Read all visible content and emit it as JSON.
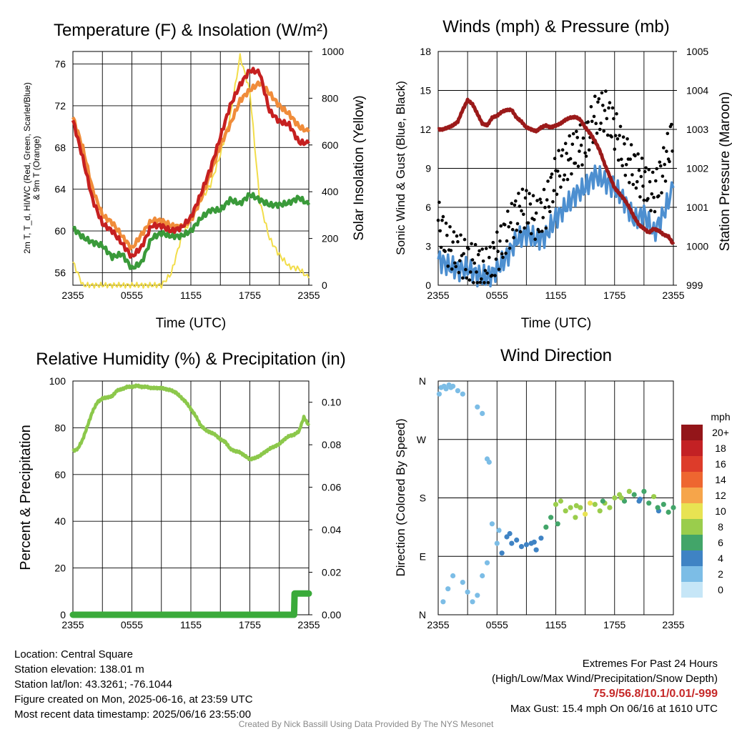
{
  "chart_data": [
    {
      "type": "line",
      "title": "Temperature (F) & Insolation (W/m²)",
      "xlabel": "Time (UTC)",
      "ylabel_lines": [
        "2m T, T_d, HI/WC (Red, Green, Scarlet/Blue)",
        "& 9m T (Orange)"
      ],
      "y2label": "Solar Insolation (Yellow)",
      "x_ticks": [
        "2355",
        "0555",
        "1155",
        "1755",
        "2355"
      ],
      "ylim": [
        54.8,
        77.2
      ],
      "y_ticks": [
        56,
        60,
        64,
        68,
        72,
        76
      ],
      "y2lim": [
        0,
        1000
      ],
      "y2_ticks": [
        0,
        200,
        400,
        600,
        800,
        1000
      ],
      "series": [
        {
          "name": "9m T",
          "color": "#f08c3a",
          "axis": "left",
          "x": [
            0,
            1,
            2,
            3,
            4,
            5,
            6,
            7,
            8,
            9,
            10,
            11,
            12,
            13,
            14,
            15,
            16,
            17,
            18,
            19,
            20,
            21,
            22,
            23,
            24
          ],
          "values": [
            70.9,
            68,
            64,
            61.5,
            60.8,
            59.5,
            58.3,
            59.7,
            61,
            61,
            60.5,
            60.4,
            61,
            63,
            65.5,
            68.2,
            70.2,
            72.5,
            73.5,
            74.2,
            73.2,
            72,
            71.2,
            70,
            69.5
          ]
        },
        {
          "name": "Scarlet",
          "color": "#c62020",
          "axis": "left",
          "x": [
            0,
            1,
            2,
            3,
            4,
            5,
            6,
            7,
            8,
            9,
            10,
            11,
            12,
            13,
            14,
            15,
            16,
            17,
            18,
            19,
            20,
            21,
            22,
            23,
            24
          ],
          "values": [
            70.6,
            67,
            63,
            60.7,
            60,
            58.8,
            57.5,
            58.5,
            60.5,
            60.5,
            60,
            60.3,
            61.3,
            63.5,
            66,
            69,
            72,
            74,
            75.4,
            75.2,
            71.5,
            70.5,
            70.2,
            68.5,
            68.4
          ]
        },
        {
          "name": "T_d",
          "color": "#3a9a3a",
          "axis": "left",
          "x": [
            0,
            1,
            2,
            3,
            4,
            5,
            6,
            7,
            8,
            9,
            10,
            11,
            12,
            13,
            14,
            15,
            16,
            17,
            18,
            19,
            20,
            21,
            22,
            23,
            24
          ],
          "values": [
            60.3,
            59.4,
            58.9,
            58.6,
            57.5,
            57.8,
            56.4,
            57,
            59.3,
            59.8,
            59.5,
            59.5,
            60,
            61.2,
            62,
            62,
            63,
            62.6,
            63.5,
            63,
            62.5,
            62.5,
            62.7,
            63.2,
            62.5
          ]
        },
        {
          "name": "Insolation",
          "color": "#f2dd4a",
          "axis": "right",
          "x": [
            0,
            1,
            2,
            3,
            4,
            5,
            6,
            7,
            8,
            9,
            10,
            11,
            12,
            13,
            14,
            15,
            16,
            17,
            18,
            19,
            20,
            21,
            22,
            23,
            24
          ],
          "values": [
            100,
            0,
            0,
            0,
            0,
            0,
            0,
            0,
            0,
            0,
            50,
            200,
            280,
            360,
            430,
            560,
            720,
            980,
            830,
            360,
            200,
            130,
            80,
            70,
            30
          ]
        }
      ]
    },
    {
      "type": "line",
      "title": "Winds (mph) & Pressure (mb)",
      "xlabel": "Time (UTC)",
      "ylabel": "Sonic Wind & Gust (Blue, Black)",
      "y2label": "Station Pressure (Maroon)",
      "x_ticks": [
        "2355",
        "0555",
        "1155",
        "1755",
        "2355"
      ],
      "ylim": [
        0,
        18
      ],
      "y_ticks": [
        0,
        3,
        6,
        9,
        12,
        15,
        18
      ],
      "y2lim": [
        999,
        1005
      ],
      "y2_ticks": [
        999,
        1000,
        1001,
        1002,
        1003,
        1004,
        1005
      ],
      "series": [
        {
          "name": "Sonic Wind",
          "color": "#4d8fd0",
          "axis": "left",
          "x": [
            0,
            1,
            2,
            3,
            4,
            5,
            6,
            7,
            8,
            9,
            10,
            11,
            12,
            13,
            14,
            15,
            16,
            17,
            18,
            19,
            20,
            21,
            22,
            23,
            24
          ],
          "values": [
            2,
            1.5,
            1.2,
            1.3,
            0.8,
            0.6,
            1.2,
            2.2,
            3.5,
            4,
            3.5,
            3.8,
            5.2,
            6,
            7,
            7.5,
            8.5,
            8,
            7.5,
            6.5,
            5,
            5.5,
            4,
            5.5,
            7.5
          ]
        },
        {
          "name": "Gust",
          "color": "#000000",
          "axis": "left",
          "x": [
            0,
            1,
            2,
            3,
            4,
            5,
            6,
            7,
            8,
            9,
            10,
            11,
            12,
            13,
            14,
            15,
            16,
            17,
            18,
            19,
            20,
            21,
            22,
            23,
            24
          ],
          "values": [
            5,
            3,
            2.5,
            1.8,
            1.5,
            1.2,
            2.5,
            4,
            5.5,
            6,
            5,
            6,
            8.5,
            9.5,
            10.5,
            11,
            13,
            13.5,
            12,
            10,
            9,
            8,
            7,
            9,
            12
          ]
        },
        {
          "name": "Station Pressure",
          "color": "#9b1a1a",
          "axis": "right",
          "x": [
            0,
            0.5,
            1,
            1.5,
            2,
            2.5,
            3,
            3.5,
            4,
            4.5,
            5,
            5.5,
            6,
            6.5,
            7,
            7.5,
            8,
            8.5,
            9,
            9.5,
            10,
            10.5,
            11,
            11.5,
            12,
            12.5,
            13,
            13.5,
            14,
            14.5,
            15,
            15.5,
            16,
            16.5,
            17,
            17.5,
            18,
            18.5,
            19,
            19.5,
            20,
            20.5,
            21,
            21.5,
            22,
            22.5,
            23,
            23.5,
            24
          ],
          "values": [
            1003,
            1003,
            1003.05,
            1003.1,
            1003.2,
            1003.5,
            1003.75,
            1003.65,
            1003.4,
            1003.15,
            1003.1,
            1003.3,
            1003.35,
            1003.45,
            1003.5,
            1003.5,
            1003.3,
            1003.2,
            1003.05,
            1003,
            1002.95,
            1003.05,
            1003.1,
            1003.05,
            1003.1,
            1003.15,
            1003.25,
            1003.3,
            1003.32,
            1003.25,
            1003.05,
            1002.9,
            1002.7,
            1002.45,
            1002.1,
            1001.8,
            1001.5,
            1001.35,
            1001.2,
            1001,
            1000.75,
            1000.55,
            1000.45,
            1000.35,
            1000.45,
            1000.4,
            1000.3,
            1000.25,
            1000.05
          ]
        }
      ]
    },
    {
      "type": "line",
      "title": "Relative Humidity (%) & Precipitation (in)",
      "xlabel": "",
      "ylabel": "Percent & Precipitation",
      "x_ticks": [
        "2355",
        "0555",
        "1155",
        "1755",
        "2355"
      ],
      "ylim": [
        0,
        100
      ],
      "y_ticks": [
        0,
        20,
        40,
        60,
        80,
        100
      ],
      "y2lim": [
        0,
        0.11
      ],
      "y2_ticks": [
        "0.00",
        "0.02",
        "0.04",
        "0.06",
        "0.08",
        "0.10"
      ],
      "series": [
        {
          "name": "Relative Humidity",
          "color": "#8cc84b",
          "axis": "left",
          "x": [
            0,
            0.5,
            1,
            1.5,
            2,
            2.5,
            3,
            3.5,
            4,
            4.5,
            5,
            5.5,
            6,
            6.5,
            7,
            7.5,
            8,
            8.5,
            9,
            9.5,
            10,
            10.5,
            11,
            11.5,
            12,
            12.5,
            13,
            13.5,
            14,
            14.5,
            15,
            15.5,
            16,
            16.5,
            17,
            17.5,
            18,
            18.5,
            19,
            19.5,
            20,
            20.5,
            21,
            21.5,
            22,
            22.5,
            23,
            23.5,
            24
          ],
          "values": [
            70,
            71,
            75,
            81,
            87,
            91,
            92.5,
            93,
            93.5,
            96,
            96.5,
            97.5,
            97.5,
            98,
            97.5,
            97.5,
            97,
            97,
            97,
            96.5,
            96,
            95,
            93,
            91,
            88,
            85,
            81,
            79,
            78,
            77,
            75,
            74,
            71,
            70,
            69.5,
            68,
            66.5,
            67,
            68,
            69.5,
            71,
            72,
            73,
            75,
            76.5,
            77,
            78.5,
            84.5,
            81
          ]
        },
        {
          "name": "Precipitation",
          "color": "#3aaa3a",
          "axis": "right",
          "x": [
            0,
            1,
            2,
            3,
            4,
            5,
            6,
            7,
            8,
            9,
            10,
            11,
            12,
            13,
            14,
            15,
            16,
            17,
            18,
            19,
            20,
            21,
            22,
            22.5,
            22.55,
            23,
            23.5,
            24
          ],
          "values": [
            0,
            0,
            0,
            0,
            0,
            0,
            0,
            0,
            0,
            0,
            0,
            0,
            0,
            0,
            0,
            0,
            0,
            0,
            0,
            0,
            0,
            0,
            0,
            0,
            0.01,
            0.01,
            0.01,
            0.01
          ]
        }
      ]
    },
    {
      "type": "scatter",
      "title": "Wind Direction",
      "xlabel": "",
      "ylabel": "Direction (Colored By Speed)",
      "x_ticks": [
        "2355",
        "0555",
        "1155",
        "1755",
        "2355"
      ],
      "y_ticks": [
        "N",
        "E",
        "S",
        "W",
        "N"
      ],
      "ylim": [
        0,
        360
      ],
      "colorbar": {
        "unit": "mph",
        "labels": [
          "0",
          "2",
          "4",
          "6",
          "8",
          "10",
          "12",
          "14",
          "16",
          "18",
          "20+"
        ],
        "colors": [
          "#c6e6f7",
          "#7cbde6",
          "#3f83c4",
          "#42a569",
          "#9acd4c",
          "#e8e352",
          "#f6a54a",
          "#ee6630",
          "#dd3c2a",
          "#c32124",
          "#931519"
        ]
      },
      "points": {
        "x": [
          0.1,
          0.3,
          0.6,
          0.8,
          1.1,
          1.3,
          1.5,
          2,
          2.5,
          4,
          4.5,
          5,
          5.2,
          0.5,
          1,
          1.5,
          2.5,
          3,
          3.5,
          4,
          4.5,
          5,
          5.5,
          6,
          6.5,
          7,
          7.5,
          8,
          8.5,
          9,
          9.5,
          10,
          10.5,
          11,
          11.5,
          12,
          12.5,
          13,
          13.5,
          14,
          14.5,
          15,
          15.5,
          16,
          16.5,
          17,
          17.5,
          18,
          18.5,
          19,
          19.5,
          20,
          20.5,
          21,
          21.5,
          22,
          22.5,
          23,
          23.5,
          24,
          6.2,
          7.3,
          9.8,
          12.2,
          14.1,
          16.8,
          18.7,
          20.6,
          22.4
        ],
        "y": [
          340,
          350,
          352,
          348,
          354,
          350,
          352,
          345,
          340,
          320,
          310,
          240,
          235,
          20,
          40,
          60,
          50,
          35,
          20,
          30,
          60,
          80,
          140,
          110,
          95,
          120,
          110,
          115,
          105,
          108,
          110,
          100,
          118,
          135,
          150,
          170,
          175,
          160,
          165,
          150,
          165,
          155,
          172,
          170,
          160,
          172,
          165,
          180,
          185,
          175,
          190,
          185,
          175,
          190,
          172,
          182,
          160,
          170,
          158,
          165,
          130,
          125,
          112,
          140,
          168,
          175,
          180,
          178,
          165
        ],
        "speed": [
          1,
          1,
          1,
          2,
          1,
          2,
          1,
          1,
          1,
          1,
          1,
          1,
          1,
          2,
          1,
          1,
          1,
          2,
          2,
          1,
          1,
          2,
          2,
          2,
          3,
          3,
          3,
          3,
          3,
          3,
          3,
          3,
          4,
          5,
          5,
          7,
          8,
          7,
          8,
          7,
          8,
          9,
          10,
          7,
          8,
          7,
          8,
          8,
          7,
          6,
          7,
          5,
          4,
          6,
          5,
          7,
          4,
          5,
          5,
          6,
          2,
          3,
          4,
          5,
          8,
          6,
          7,
          4,
          6
        ]
      }
    }
  ],
  "footer": {
    "location": "Location: Central Square",
    "elevation": "Station elevation: 138.01 m",
    "latlon": "Station lat/lon: 43.3261; -76.1044",
    "created": "Figure created on Mon, 2025-06-16, at 23:59 UTC",
    "latest": "Most recent data timestamp: 2025/06/16 23:55:00"
  },
  "extremes": {
    "title": "Extremes For Past 24 Hours",
    "legend": "(High/Low/Max Wind/Precipitation/Snow Depth)",
    "values": "75.9/56.8/10.1/0.01/-999",
    "max_gust": "Max Gust: 15.4 mph On 06/16 at 1610 UTC"
  },
  "credit": "Created By Nick Bassill Using Data Provided By The NYS Mesonet"
}
